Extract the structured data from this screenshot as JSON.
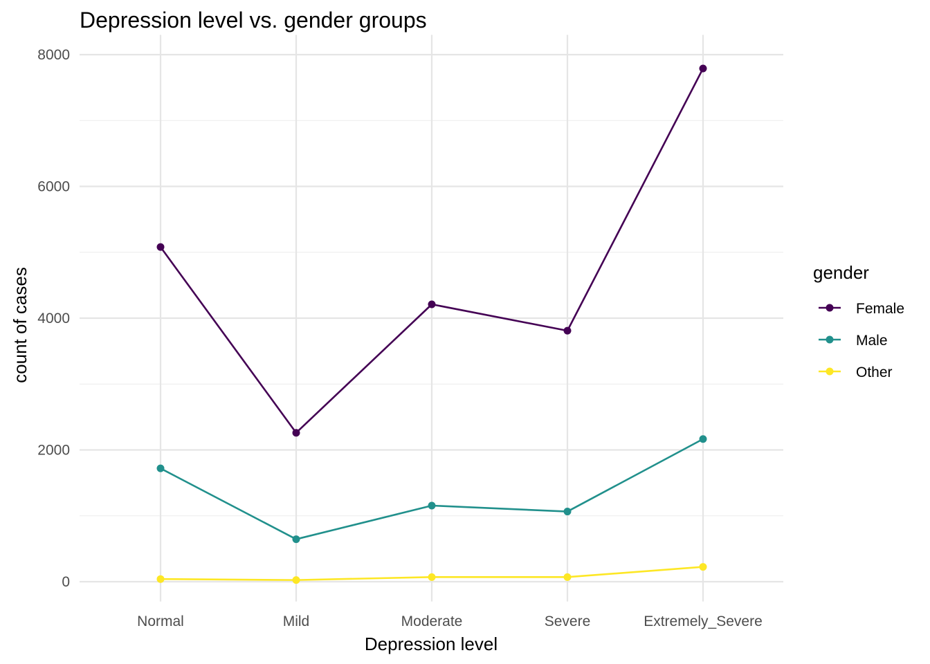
{
  "chart_data": {
    "type": "line",
    "title": "Depression level vs. gender groups",
    "xlabel": "Depression level",
    "ylabel": "count of cases",
    "categories": [
      "Normal",
      "Mild",
      "Moderate",
      "Severe",
      "Extremely_Severe"
    ],
    "ylim": [
      -300,
      8300
    ],
    "yticks": [
      0,
      2000,
      4000,
      6000,
      8000
    ],
    "ytick_labels": [
      "0",
      "2000",
      "4000",
      "6000",
      "8000"
    ],
    "grid": true,
    "legend": {
      "title": "gender",
      "placement": "right"
    },
    "series": [
      {
        "name": "Female",
        "color": "#440154",
        "values": [
          5080,
          2260,
          4210,
          3810,
          7790
        ]
      },
      {
        "name": "Male",
        "color": "#21908C",
        "values": [
          1720,
          645,
          1155,
          1065,
          2165
        ]
      },
      {
        "name": "Other",
        "color": "#FDE725",
        "values": [
          40,
          25,
          70,
          70,
          225
        ]
      }
    ]
  }
}
